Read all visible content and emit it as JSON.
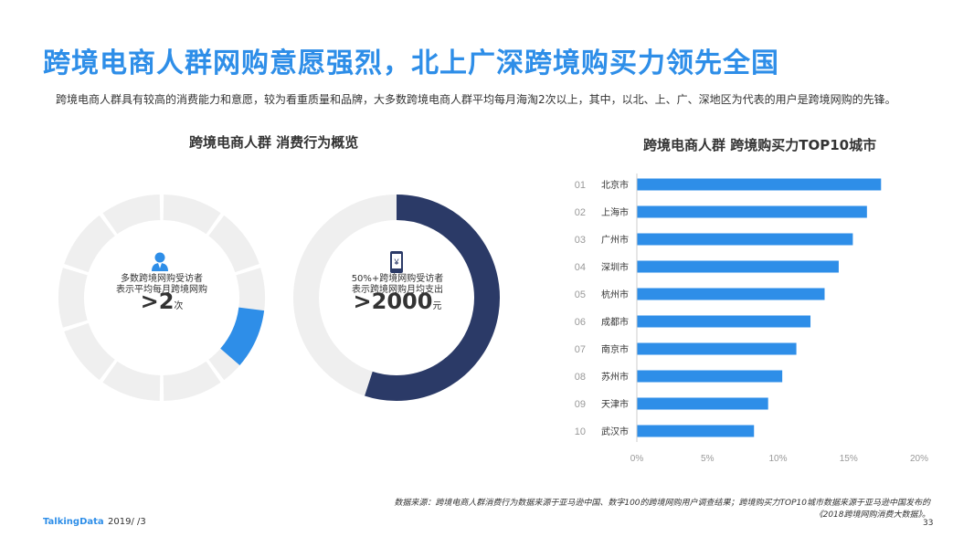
{
  "page": {
    "title": "跨境电商人群网购意愿强烈，北上广深跨境购买力领先全国",
    "subtitle": "跨境电商人群具有较高的消费能力和意愿，较为看重质量和品牌，大多数跨境电商人群平均每月海淘2次以上，其中，以北、上、广、深地区为代表的用户是跨境网购的先锋。"
  },
  "left_section": {
    "title": "跨境电商人群  消费行为概览",
    "donut1": {
      "line1": "多数跨境网购受访者",
      "line2": "表示平均每月跨境网购",
      "prefix": ">",
      "number": "2",
      "unit": "次",
      "fraction": 0.1,
      "color": "#2e8ee8",
      "icon": "person-icon"
    },
    "donut2": {
      "line1": "50%+跨境网购受访者",
      "line2": "表示跨境网购月均支出",
      "prefix": ">",
      "number": "2000",
      "unit": "元",
      "fraction": 0.55,
      "color": "#2b3a67",
      "icon": "phone-yuan-icon"
    }
  },
  "chart_data": {
    "type": "bar",
    "title": "跨境电商人群  跨境购买力TOP10城市",
    "orientation": "horizontal",
    "ranks": [
      "01",
      "02",
      "03",
      "04",
      "05",
      "06",
      "07",
      "08",
      "09",
      "10"
    ],
    "categories": [
      "北京市",
      "上海市",
      "广州市",
      "深圳市",
      "杭州市",
      "成都市",
      "南京市",
      "苏州市",
      "天津市",
      "武汉市"
    ],
    "values": [
      17.3,
      16.3,
      15.3,
      14.3,
      13.3,
      12.3,
      11.3,
      10.3,
      9.3,
      8.3
    ],
    "xlim": [
      0,
      20
    ],
    "xticks": [
      "0%",
      "5%",
      "10%",
      "15%",
      "20%"
    ],
    "color": "#2e8ee8"
  },
  "footer": {
    "source_line1": "数据来源：跨境电商人群消费行为数据来源于亚马逊中国、数字100的跨境网购用户调查结果；跨境购买力TOP10城市数据来源于亚马逊中国发布的",
    "source_line2": "《2018跨境网购消费大数据》。",
    "logo": "TalkingData",
    "date": "2019/ /3",
    "page": "33"
  }
}
